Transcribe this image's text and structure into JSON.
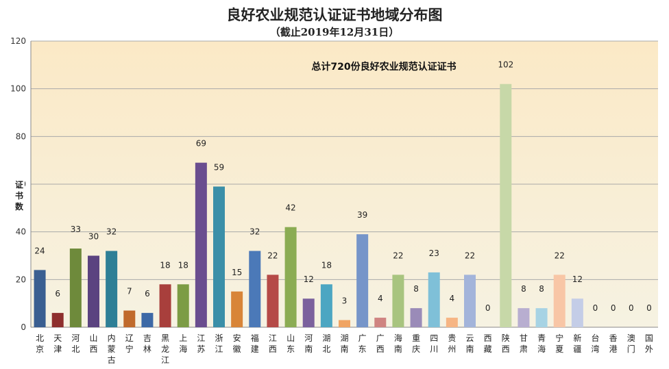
{
  "chart_data": {
    "type": "bar",
    "title": "良好农业规范认证证书地域分布图",
    "subtitle": "（截止2019年12月31日）",
    "annotation": "总计720份良好农业规范认证证书",
    "ylabel": "证书数",
    "xlabel": "",
    "ylim": [
      0,
      120
    ],
    "yticks": [
      0,
      20,
      40,
      60,
      80,
      100,
      120
    ],
    "grid": true,
    "legend": "none",
    "categories": [
      "北京",
      "天津",
      "河北",
      "山西",
      "内蒙古",
      "辽宁",
      "吉林",
      "黑龙江",
      "上海",
      "江苏",
      "浙江",
      "安徽",
      "福建",
      "江西",
      "山东",
      "河南",
      "湖北",
      "湖南",
      "广东",
      "广西",
      "海南",
      "重庆",
      "四川",
      "贵州",
      "云南",
      "西藏",
      "陕西",
      "甘肃",
      "青海",
      "宁夏",
      "新疆",
      "台湾",
      "香港",
      "澳门",
      "国外"
    ],
    "values": [
      24,
      6,
      33,
      30,
      32,
      7,
      6,
      18,
      18,
      69,
      59,
      15,
      32,
      22,
      42,
      12,
      18,
      3,
      39,
      4,
      22,
      8,
      23,
      4,
      22,
      0,
      102,
      8,
      8,
      22,
      12,
      0,
      0,
      0,
      0
    ],
    "colors": [
      "#3a5f91",
      "#8e2f2e",
      "#6e8a3b",
      "#5b4380",
      "#2e7f96",
      "#c06a2c",
      "#3d69a6",
      "#a83f3c",
      "#7c9c45",
      "#6a4d8f",
      "#3b8fa8",
      "#d88538",
      "#4b79b8",
      "#b54a47",
      "#8bac53",
      "#7b619d",
      "#4ca6c2",
      "#f0a463",
      "#7695c9",
      "#cf8481",
      "#a8c47f",
      "#9a8bb8",
      "#7fc0d8",
      "#f6b584",
      "#a3b4da",
      "#d9a8a6",
      "#c7d8a8",
      "#b8aed0",
      "#a7d3e4",
      "#f8c6a6",
      "#c4cde7",
      "#ccc0dc",
      "#ddd5e8",
      "#e8e0ee",
      "#e6e6e6"
    ]
  }
}
